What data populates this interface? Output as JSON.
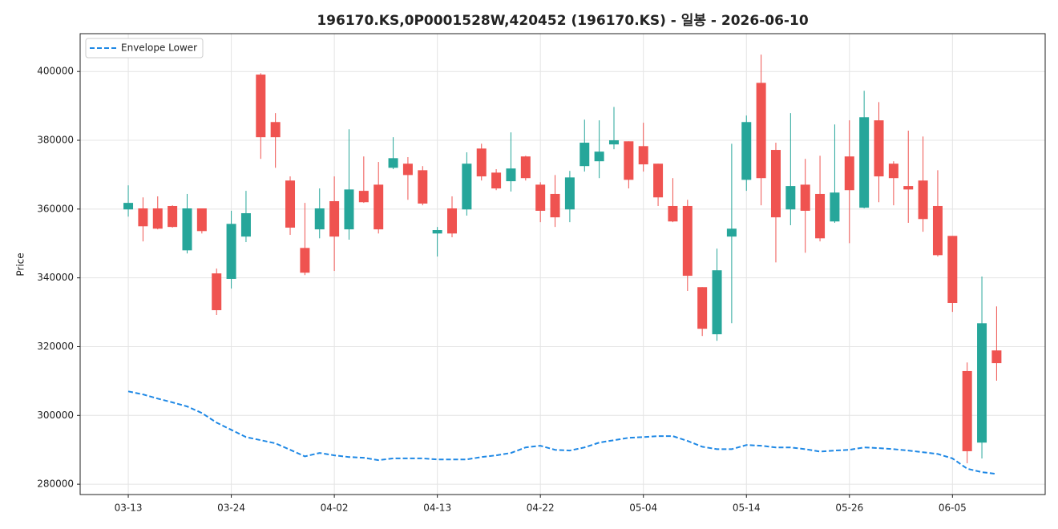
{
  "chart_data": {
    "type": "candlestick",
    "title": "196170.KS,0P0001528W,420452 (196170.KS) - 일봉 - 2026-06-10",
    "ylabel": "Price",
    "categories": [
      "03-13",
      null,
      null,
      null,
      null,
      null,
      null,
      "03-24",
      null,
      null,
      null,
      null,
      null,
      null,
      "04-02",
      null,
      null,
      null,
      null,
      null,
      null,
      "04-13",
      null,
      null,
      null,
      null,
      null,
      null,
      "04-22",
      null,
      null,
      null,
      null,
      null,
      null,
      "05-04",
      null,
      null,
      null,
      null,
      null,
      null,
      "05-14",
      null,
      null,
      null,
      null,
      null,
      null,
      "05-26",
      null,
      null,
      null,
      null,
      null,
      null,
      "06-05",
      null,
      null,
      null
    ],
    "open": [
      359900,
      360200,
      360200,
      360900,
      348000,
      360200,
      341300,
      339700,
      352000,
      399100,
      385300,
      368300,
      348700,
      354100,
      362300,
      354100,
      365300,
      367100,
      372000,
      373200,
      371300,
      352900,
      360200,
      359900,
      377600,
      370600,
      368100,
      375300,
      367100,
      364400,
      359900,
      372500,
      373900,
      378800,
      379700,
      378300,
      373200,
      360900,
      360900,
      337300,
      323600,
      352000,
      368500,
      396700,
      377200,
      359900,
      367100,
      364400,
      356400,
      375300,
      360400,
      385800,
      373200,
      366700,
      368300,
      360900,
      352200,
      312900,
      292100,
      318900
    ],
    "high": [
      366900,
      363400,
      363700,
      361100,
      364400,
      360200,
      342700,
      359500,
      365300,
      399500,
      387900,
      369500,
      361800,
      366000,
      369500,
      383200,
      375300,
      373700,
      380900,
      375100,
      372500,
      354800,
      363700,
      376500,
      379000,
      371600,
      382300,
      375500,
      367800,
      369900,
      371100,
      386000,
      385800,
      389700,
      379700,
      385100,
      373200,
      369000,
      362700,
      337300,
      348500,
      379000,
      387200,
      404900,
      379300,
      387900,
      374600,
      375500,
      384600,
      385800,
      394400,
      391100,
      373900,
      382800,
      381100,
      371300,
      352200,
      315400,
      340400,
      331700
    ],
    "low": [
      357800,
      350600,
      354100,
      354600,
      347100,
      352900,
      329200,
      336900,
      350400,
      374600,
      372000,
      352500,
      340800,
      351500,
      342000,
      351100,
      361800,
      352900,
      371600,
      362700,
      361100,
      346200,
      351800,
      358100,
      368300,
      365500,
      365100,
      368300,
      356200,
      354800,
      356200,
      370900,
      369000,
      377400,
      366000,
      370900,
      360900,
      356200,
      336200,
      323100,
      321700,
      326800,
      365300,
      361100,
      344500,
      355300,
      347300,
      350600,
      356000,
      350100,
      360200,
      362000,
      361100,
      356000,
      353400,
      346200,
      330100,
      286100,
      287500,
      310100
    ],
    "close": [
      361800,
      355000,
      354300,
      354800,
      360200,
      353600,
      330600,
      355700,
      358800,
      380900,
      380900,
      354600,
      341500,
      360200,
      352000,
      365700,
      362000,
      354100,
      374800,
      369900,
      361600,
      353900,
      352900,
      373200,
      369500,
      366000,
      371800,
      369000,
      359500,
      357600,
      369200,
      379300,
      376700,
      380000,
      368500,
      373000,
      363400,
      356400,
      340600,
      325200,
      342200,
      354300,
      385300,
      369000,
      357600,
      366700,
      359500,
      351500,
      364800,
      365500,
      386700,
      369500,
      369000,
      365700,
      357100,
      346600,
      332700,
      289600,
      326800,
      315200
    ],
    "up_color": "#26a69a",
    "down_color": "#ef5350",
    "series": [
      {
        "name": "Envelope Lower",
        "type": "line",
        "color": "#1e88e5",
        "dashed": true,
        "values": [
          307000,
          306100,
          304900,
          303800,
          302600,
          300700,
          297900,
          295800,
          293700,
          292800,
          291900,
          290000,
          288100,
          289100,
          288400,
          287900,
          287700,
          287000,
          287500,
          287500,
          287500,
          287200,
          287200,
          287200,
          287900,
          288400,
          289100,
          290700,
          291200,
          290000,
          289800,
          290700,
          292100,
          292800,
          293500,
          293700,
          294000,
          294000,
          292600,
          290900,
          290200,
          290200,
          291400,
          291200,
          290700,
          290700,
          290200,
          289500,
          289800,
          290000,
          290700,
          290500,
          290200,
          289800,
          289300,
          288800,
          287500,
          284500,
          283500,
          283000
        ]
      }
    ],
    "ylim": [
      277000,
      411000
    ],
    "yticks": [
      280000,
      300000,
      320000,
      340000,
      360000,
      380000,
      400000
    ],
    "grid": true,
    "legend": "upper left"
  }
}
